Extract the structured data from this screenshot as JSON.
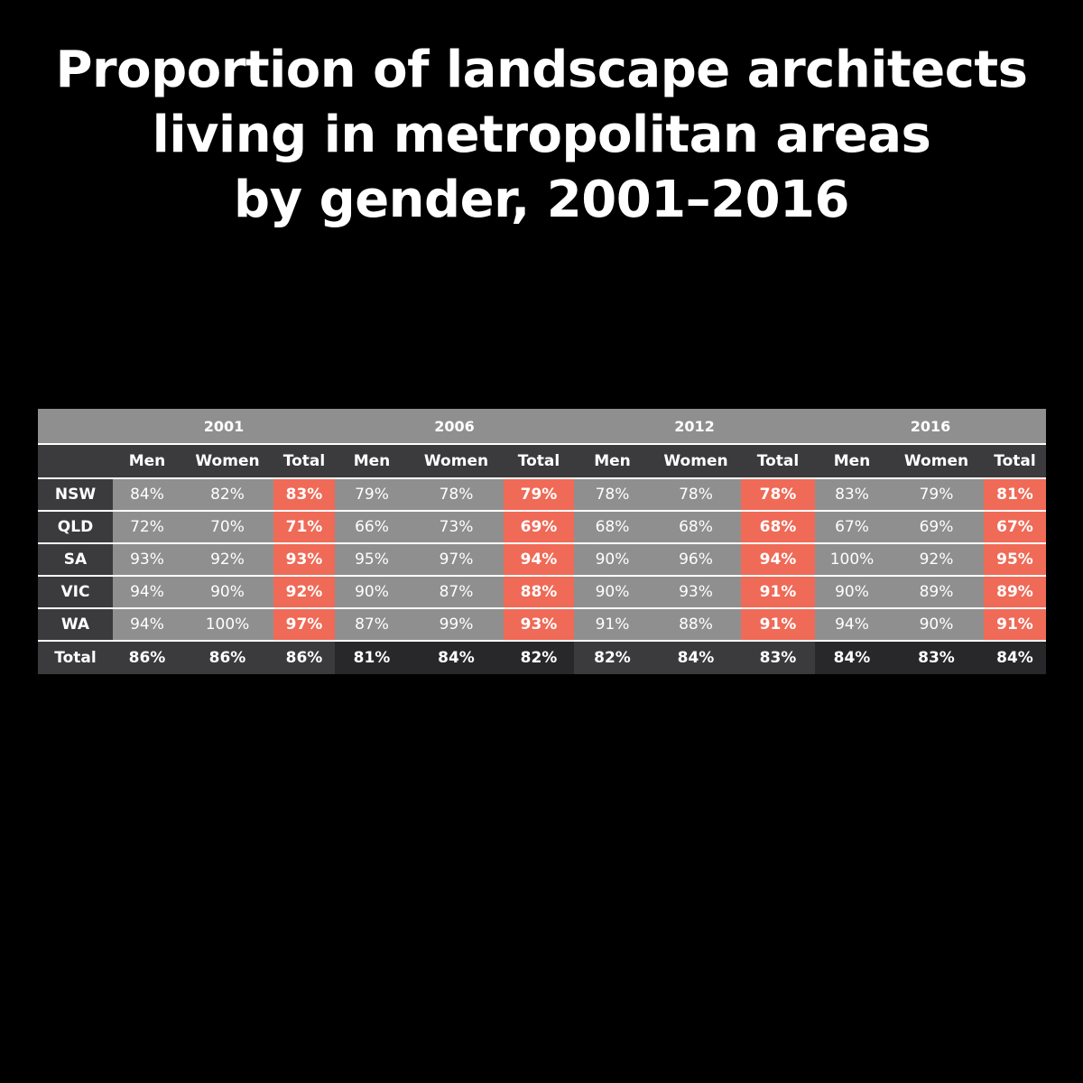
{
  "title": {
    "line1": "Proportion of landscape architects",
    "line2": "living in metropolitan areas",
    "line3": "by gender, 2001–2016"
  },
  "chart_data": {
    "type": "table",
    "years": [
      "2001",
      "2006",
      "2012",
      "2016"
    ],
    "subheaders": [
      "Men",
      "Women",
      "Total"
    ],
    "rows": [
      {
        "state": "NSW",
        "values": [
          "84%",
          "82%",
          "83%",
          "79%",
          "78%",
          "79%",
          "78%",
          "78%",
          "78%",
          "83%",
          "79%",
          "81%"
        ]
      },
      {
        "state": "QLD",
        "values": [
          "72%",
          "70%",
          "71%",
          "66%",
          "73%",
          "69%",
          "68%",
          "68%",
          "68%",
          "67%",
          "69%",
          "67%"
        ]
      },
      {
        "state": "SA",
        "values": [
          "93%",
          "92%",
          "93%",
          "95%",
          "97%",
          "94%",
          "90%",
          "96%",
          "94%",
          "100%",
          "92%",
          "95%"
        ]
      },
      {
        "state": "VIC",
        "values": [
          "94%",
          "90%",
          "92%",
          "90%",
          "87%",
          "88%",
          "90%",
          "93%",
          "91%",
          "90%",
          "89%",
          "89%"
        ]
      },
      {
        "state": "WA",
        "values": [
          "94%",
          "100%",
          "97%",
          "87%",
          "99%",
          "93%",
          "91%",
          "88%",
          "91%",
          "94%",
          "90%",
          "91%"
        ]
      }
    ],
    "total_row": {
      "state": "Total",
      "values": [
        "86%",
        "86%",
        "86%",
        "81%",
        "84%",
        "82%",
        "82%",
        "84%",
        "83%",
        "84%",
        "83%",
        "84%"
      ]
    }
  },
  "colors": {
    "background": "#000000",
    "header_grey": "#8f8f8f",
    "dark_cell": "#3b3b3e",
    "accent_total": "#ef6a57",
    "text": "#ffffff"
  }
}
